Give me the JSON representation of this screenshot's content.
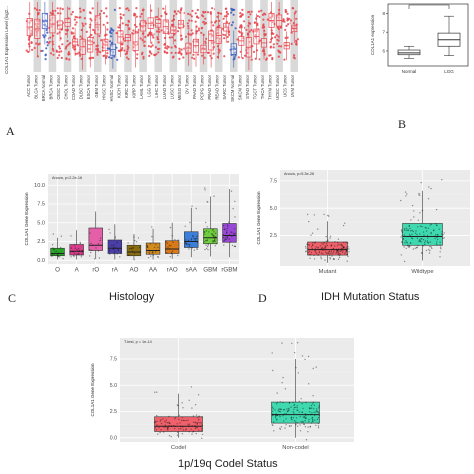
{
  "panels": {
    "A": {
      "letter": "A"
    },
    "B": {
      "letter": "B"
    },
    "C": {
      "letter": "C",
      "xtitle": "Histology"
    },
    "D": {
      "letter": "D",
      "xtitle": "IDH Mutation Status"
    },
    "E": {
      "xtitle": "1p/19q Codel Status"
    }
  },
  "colors": {
    "tumor_red": "#e8434b",
    "normal_blue": "#3b5bbf",
    "grey_band": "#d9d9d9",
    "mutant": "#f0616b",
    "wildtype": "#3fd9b0",
    "O": "#27a327",
    "A": "#d93c8a",
    "rO": "#e55fa8",
    "rA": "#4a3ea8",
    "AO": "#8a6d0e",
    "AA": "#d28b1e",
    "rAO": "#d97a1a",
    "sAA": "#3d7ed8",
    "GBM": "#6fcf3e",
    "rGBM": "#9a48d6"
  },
  "chart_data": [
    {
      "panel": "A",
      "type": "box",
      "ylabel": "COL1A1 Expression Level (log2...",
      "categories": [
        "ACC Tumor",
        "BLCA Tumor",
        "BRCA Normal",
        "BRCA Tumor",
        "CESC Tumor",
        "CHOL Tumor",
        "COAD Tumor",
        "DLBC Tumor",
        "ESCA Tumor",
        "GBM Tumor",
        "HNSC Tumor",
        "HNSC Normal",
        "KICH Tumor",
        "KIRC Tumor",
        "KIRP Tumor",
        "LAML Tumor",
        "LGG Tumor",
        "LIHC Tumor",
        "LUAD Tumor",
        "LUSC Tumor",
        "MESO Tumor",
        "OV Tumor",
        "PAAD Tumor",
        "PCPG Tumor",
        "PRAD Tumor",
        "READ Tumor",
        "SARC Tumor",
        "SKCM Normal",
        "SKCM Tumor",
        "STAD Tumor",
        "TGCT Tumor",
        "THCA Tumor",
        "THYM Tumor",
        "UCEC Tumor",
        "UCS Tumor",
        "UVM Tumor"
      ]
    },
    {
      "panel": "B",
      "type": "box",
      "ylabel": "COL1A1 expression",
      "categories": [
        "Normal",
        "LGG"
      ],
      "ytick_labels": [
        "8",
        "7",
        "6"
      ],
      "boxes": [
        {
          "q1": 5.8,
          "median": 5.9,
          "q3": 6.05,
          "lo": 5.6,
          "hi": 6.25
        },
        {
          "q1": 6.25,
          "median": 6.6,
          "q3": 6.95,
          "lo": 5.75,
          "hi": 7.85
        }
      ],
      "ylim": [
        5.2,
        8.5
      ]
    },
    {
      "panel": "C",
      "type": "box",
      "annotation": "Anova, p<2.2e-16",
      "ylabel": "COL1A1 Gene Expression",
      "xlabel": "Histology",
      "categories": [
        "O",
        "A",
        "rO",
        "rA",
        "AO",
        "AA",
        "rAO",
        "sAA",
        "GBM",
        "rGBM"
      ],
      "yticks": [
        0.0,
        2.5,
        5.0,
        7.5,
        10.0
      ],
      "ytick_labels": [
        "0.0",
        "2.5",
        "5.0",
        "7.5",
        "10.0"
      ],
      "ylim": [
        -0.5,
        11.5
      ],
      "boxes": [
        {
          "q1": 0.6,
          "median": 0.9,
          "q3": 1.6,
          "lo": 0.1,
          "hi": 3.0
        },
        {
          "q1": 0.7,
          "median": 1.2,
          "q3": 2.1,
          "lo": 0.1,
          "hi": 4.0
        },
        {
          "q1": 1.3,
          "median": 2.0,
          "q3": 4.3,
          "lo": 0.2,
          "hi": 6.5
        },
        {
          "q1": 0.9,
          "median": 1.6,
          "q3": 2.7,
          "lo": 0.1,
          "hi": 4.8
        },
        {
          "q1": 0.6,
          "median": 1.1,
          "q3": 2.0,
          "lo": 0.1,
          "hi": 3.5
        },
        {
          "q1": 0.8,
          "median": 1.3,
          "q3": 2.3,
          "lo": 0.1,
          "hi": 4.2
        },
        {
          "q1": 0.9,
          "median": 1.5,
          "q3": 2.6,
          "lo": 0.2,
          "hi": 5.0
        },
        {
          "q1": 1.7,
          "median": 2.5,
          "q3": 3.8,
          "lo": 0.4,
          "hi": 7.0
        },
        {
          "q1": 2.2,
          "median": 3.0,
          "q3": 4.2,
          "lo": 0.5,
          "hi": 8.5
        },
        {
          "q1": 2.4,
          "median": 3.3,
          "q3": 4.9,
          "lo": 0.4,
          "hi": 9.5
        }
      ]
    },
    {
      "panel": "D",
      "type": "box",
      "annotation": "Anova, p=5.3e-26",
      "ylabel": "COL1A1 Gene Expression",
      "xlabel": "IDH Mutation Status",
      "categories": [
        "Mutant",
        "Wildtype"
      ],
      "yticks": [
        2.5,
        5.0,
        7.5
      ],
      "ytick_labels": [
        "2.5",
        "5.0",
        "7.5"
      ],
      "ylim": [
        -0.3,
        8.5
      ],
      "boxes": [
        {
          "q1": 0.7,
          "median": 1.2,
          "q3": 1.9,
          "lo": 0.0,
          "hi": 3.8
        },
        {
          "q1": 1.6,
          "median": 2.4,
          "q3": 3.6,
          "lo": 0.2,
          "hi": 6.6
        }
      ]
    },
    {
      "panel": "E",
      "type": "box",
      "annotation": "T-test, p = 1e-14",
      "ylabel": "COL1A1 Gene Expression",
      "xlabel": "1p/19q Codel Status",
      "categories": [
        "Codel",
        "Non-codel"
      ],
      "yticks": [
        0.0,
        2.5,
        5.0,
        7.5
      ],
      "ytick_labels": [
        "0.0",
        "2.5",
        "5.0",
        "7.5"
      ],
      "ylim": [
        -0.4,
        9.5
      ],
      "boxes": [
        {
          "q1": 0.6,
          "median": 1.1,
          "q3": 2.0,
          "lo": 0.0,
          "hi": 4.2
        },
        {
          "q1": 1.4,
          "median": 2.2,
          "q3": 3.4,
          "lo": 0.0,
          "hi": 7.5
        }
      ]
    }
  ]
}
